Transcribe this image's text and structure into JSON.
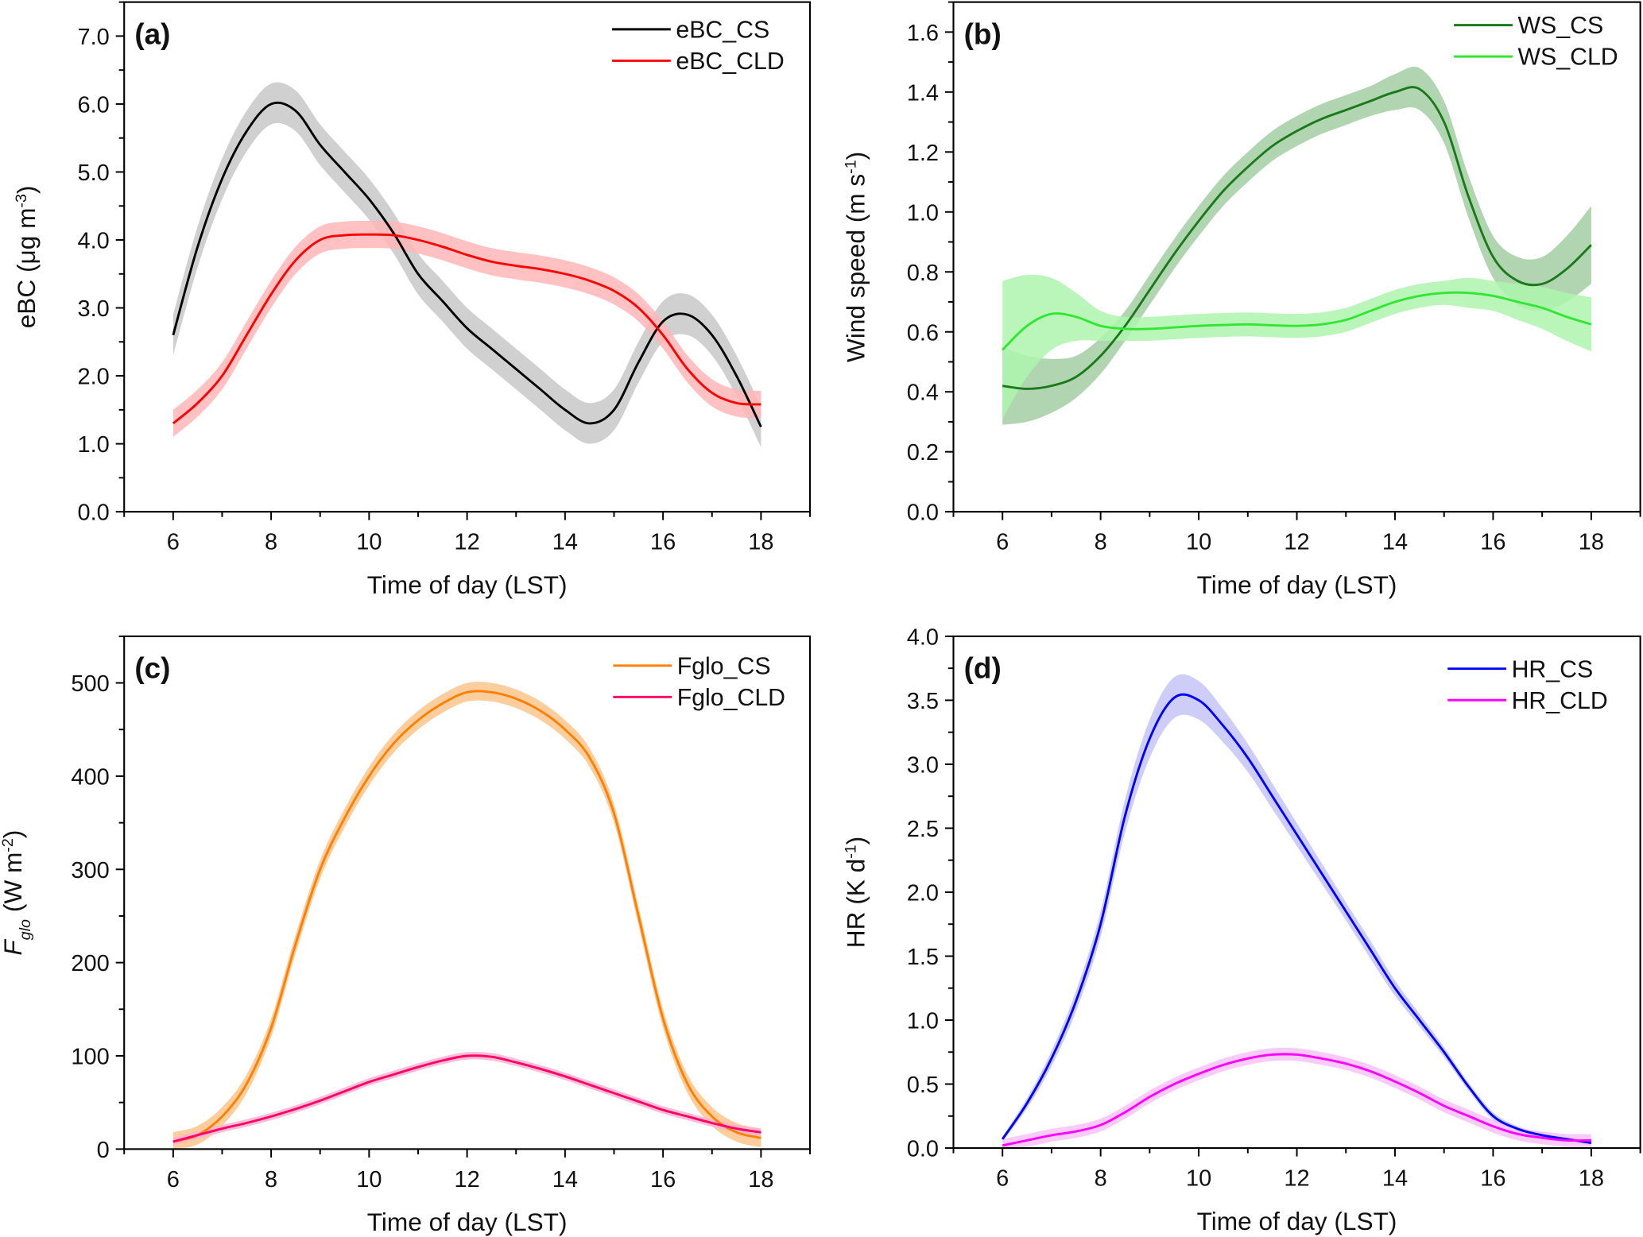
{
  "chart_data": [
    {
      "panel_label": "(a)",
      "type": "line",
      "xlabel": "Time of day (LST)",
      "xlim": [
        5,
        19
      ],
      "xticks": [
        6,
        8,
        10,
        12,
        14,
        16,
        18
      ],
      "xtick_labels": [
        "6",
        "8",
        "10",
        "12",
        "14",
        "16",
        "18"
      ],
      "ylabel": [
        {
          "t": "eBC (μg m"
        },
        {
          "t": "-3",
          "sup": true
        },
        {
          "t": ")"
        }
      ],
      "ylim": [
        0,
        7.5
      ],
      "yticks": [
        0,
        1,
        2,
        3,
        4,
        5,
        6,
        7
      ],
      "ytick_labels": [
        "0.0",
        "1.0",
        "2.0",
        "3.0",
        "4.0",
        "5.0",
        "6.0",
        "7.0"
      ],
      "yminor": 0.5,
      "legend": "top-right",
      "x": [
        6,
        6.5,
        7,
        7.5,
        8,
        8.5,
        9,
        9.5,
        10,
        10.5,
        11,
        11.5,
        12,
        12.5,
        13,
        13.5,
        14,
        14.5,
        15,
        15.5,
        16,
        16.5,
        17,
        17.5,
        18
      ],
      "series": [
        {
          "name": "eBC_CS",
          "color": "#000000",
          "band_color": "#c8c8c8",
          "spread": 0.3,
          "values": [
            2.6,
            3.9,
            4.9,
            5.6,
            6.0,
            5.9,
            5.4,
            5.0,
            4.6,
            4.1,
            3.5,
            3.1,
            2.7,
            2.4,
            2.1,
            1.8,
            1.5,
            1.3,
            1.5,
            2.2,
            2.8,
            2.9,
            2.6,
            2.0,
            1.25
          ]
        },
        {
          "name": "eBC_CLD",
          "color": "#ff0000",
          "band_color": "#ffb6b6",
          "spread": 0.2,
          "values": [
            1.3,
            1.6,
            2.0,
            2.6,
            3.2,
            3.7,
            4.0,
            4.07,
            4.08,
            4.07,
            4.0,
            3.9,
            3.78,
            3.68,
            3.62,
            3.57,
            3.5,
            3.4,
            3.25,
            3.0,
            2.6,
            2.1,
            1.75,
            1.6,
            1.58
          ]
        }
      ]
    },
    {
      "panel_label": "(b)",
      "type": "line",
      "xlabel": "Time of day (LST)",
      "xlim": [
        5,
        19
      ],
      "xticks": [
        6,
        8,
        10,
        12,
        14,
        16,
        18
      ],
      "xtick_labels": [
        "6",
        "8",
        "10",
        "12",
        "14",
        "16",
        "18"
      ],
      "ylabel": [
        {
          "t": "Wind speed (m s"
        },
        {
          "t": "-1",
          "sup": true
        },
        {
          "t": ")"
        }
      ],
      "ylim": [
        0,
        1.7
      ],
      "yticks": [
        0,
        0.2,
        0.4,
        0.6,
        0.8,
        1.0,
        1.2,
        1.4,
        1.6
      ],
      "ytick_labels": [
        "0.0",
        "0.2",
        "0.4",
        "0.6",
        "0.8",
        "1.0",
        "1.2",
        "1.4",
        "1.6"
      ],
      "yminor": 0.1,
      "legend": "top-right",
      "x": [
        6,
        6.5,
        7,
        7.5,
        8,
        8.5,
        9,
        9.5,
        10,
        10.5,
        11,
        11.5,
        12,
        12.5,
        13,
        13.5,
        14,
        14.5,
        15,
        15.5,
        16,
        16.5,
        17,
        17.5,
        18
      ],
      "series": [
        {
          "name": "WS_CS",
          "color": "#1a7a1a",
          "band_color": "#a3cca3",
          "spread": [
            0.13,
            0.11,
            0.09,
            0.07,
            0.06,
            0.05,
            0.05,
            0.05,
            0.05,
            0.05,
            0.05,
            0.05,
            0.05,
            0.05,
            0.05,
            0.05,
            0.06,
            0.07,
            0.07,
            0.07,
            0.07,
            0.08,
            0.09,
            0.11,
            0.13
          ],
          "values": [
            0.42,
            0.41,
            0.42,
            0.45,
            0.52,
            0.62,
            0.74,
            0.86,
            0.97,
            1.07,
            1.15,
            1.22,
            1.27,
            1.31,
            1.34,
            1.37,
            1.4,
            1.41,
            1.3,
            1.05,
            0.85,
            0.77,
            0.76,
            0.81,
            0.89
          ]
        },
        {
          "name": "WS_CLD",
          "color": "#33e633",
          "band_color": "#aef5ae",
          "spread": [
            0.23,
            0.17,
            0.12,
            0.08,
            0.05,
            0.04,
            0.04,
            0.04,
            0.04,
            0.04,
            0.04,
            0.04,
            0.04,
            0.04,
            0.04,
            0.04,
            0.04,
            0.04,
            0.04,
            0.05,
            0.05,
            0.06,
            0.07,
            0.08,
            0.09
          ],
          "values": [
            0.54,
            0.62,
            0.66,
            0.65,
            0.62,
            0.61,
            0.61,
            0.615,
            0.62,
            0.623,
            0.625,
            0.622,
            0.62,
            0.625,
            0.64,
            0.67,
            0.7,
            0.72,
            0.73,
            0.73,
            0.72,
            0.7,
            0.68,
            0.65,
            0.625
          ]
        }
      ]
    },
    {
      "panel_label": "(c)",
      "type": "line",
      "xlabel": "Time of day (LST)",
      "xlim": [
        5,
        19
      ],
      "xticks": [
        6,
        8,
        10,
        12,
        14,
        16,
        18
      ],
      "xtick_labels": [
        "6",
        "8",
        "10",
        "12",
        "14",
        "16",
        "18"
      ],
      "ylabel": [
        {
          "t": "F",
          "italic": true
        },
        {
          "t": "glo",
          "sub": true,
          "italic": true
        },
        {
          "t": " (W m"
        },
        {
          "t": "-2",
          "sup": true
        },
        {
          "t": ")"
        }
      ],
      "ylim": [
        0,
        550
      ],
      "yticks": [
        0,
        100,
        200,
        300,
        400,
        500
      ],
      "ytick_labels": [
        "0",
        "100",
        "200",
        "300",
        "400",
        "500"
      ],
      "yminor": 50,
      "legend": "top-right",
      "x": [
        6,
        6.5,
        7,
        7.5,
        8,
        8.5,
        9,
        9.5,
        10,
        10.5,
        11,
        11.5,
        12,
        12.5,
        13,
        13.5,
        14,
        14.5,
        15,
        15.5,
        16,
        16.5,
        17,
        17.5,
        18
      ],
      "series": [
        {
          "name": "Fglo_CS",
          "color": "#ff8000",
          "band_color": "#fcc48c",
          "spread": 10,
          "values": [
            8,
            15,
            35,
            70,
            130,
            220,
            300,
            355,
            400,
            435,
            460,
            478,
            490,
            490,
            483,
            470,
            450,
            420,
            360,
            250,
            140,
            70,
            35,
            18,
            12
          ]
        },
        {
          "name": "Fglo_CLD",
          "color": "#ff0066",
          "band_color": "#f9b3d2",
          "spread": 4,
          "values": [
            8,
            15,
            22,
            28,
            35,
            43,
            52,
            62,
            72,
            80,
            88,
            95,
            100,
            99,
            93,
            86,
            78,
            69,
            60,
            51,
            42,
            35,
            28,
            22,
            18
          ]
        }
      ]
    },
    {
      "panel_label": "(d)",
      "type": "line",
      "xlabel": "Time of day (LST)",
      "xlim": [
        5,
        19
      ],
      "xticks": [
        6,
        8,
        10,
        12,
        14,
        16,
        18
      ],
      "xtick_labels": [
        "6",
        "8",
        "10",
        "12",
        "14",
        "16",
        "18"
      ],
      "ylabel": [
        {
          "t": "HR (K d"
        },
        {
          "t": "-1",
          "sup": true
        },
        {
          "t": ")"
        }
      ],
      "ylim": [
        0,
        4.0
      ],
      "yticks": [
        0,
        0.5,
        1,
        1.5,
        2,
        2.5,
        3,
        3.5,
        4
      ],
      "ytick_labels": [
        "0.0",
        "0.5",
        "1.0",
        "1.5",
        "2.0",
        "2.5",
        "3.0",
        "3.5",
        "4.0"
      ],
      "yminor": 0.25,
      "legend": "top-right",
      "x": [
        6,
        6.5,
        7,
        7.5,
        8,
        8.5,
        9,
        9.5,
        10,
        10.5,
        11,
        11.5,
        12,
        12.5,
        13,
        13.5,
        14,
        14.5,
        15,
        15.5,
        16,
        16.5,
        17,
        17.5,
        18
      ],
      "series": [
        {
          "name": "HR_CS",
          "color": "#0000ff",
          "band_color": "#c4c4f6",
          "spread": [
            0.02,
            0.04,
            0.06,
            0.08,
            0.1,
            0.13,
            0.15,
            0.16,
            0.15,
            0.13,
            0.11,
            0.1,
            0.09,
            0.08,
            0.07,
            0.07,
            0.06,
            0.05,
            0.04,
            0.03,
            0.03,
            0.02,
            0.02,
            0.02,
            0.02
          ],
          "values": [
            0.07,
            0.35,
            0.7,
            1.15,
            1.75,
            2.6,
            3.2,
            3.52,
            3.5,
            3.3,
            3.05,
            2.75,
            2.45,
            2.15,
            1.85,
            1.55,
            1.25,
            1.0,
            0.75,
            0.48,
            0.25,
            0.15,
            0.1,
            0.07,
            0.04
          ]
        },
        {
          "name": "HR_CLD",
          "color": "#ff00ff",
          "band_color": "#f8c2f8",
          "spread": 0.05,
          "values": [
            0.02,
            0.06,
            0.1,
            0.13,
            0.18,
            0.28,
            0.4,
            0.5,
            0.58,
            0.65,
            0.7,
            0.73,
            0.73,
            0.7,
            0.66,
            0.6,
            0.52,
            0.43,
            0.33,
            0.25,
            0.17,
            0.11,
            0.08,
            0.06,
            0.06
          ]
        }
      ]
    }
  ]
}
